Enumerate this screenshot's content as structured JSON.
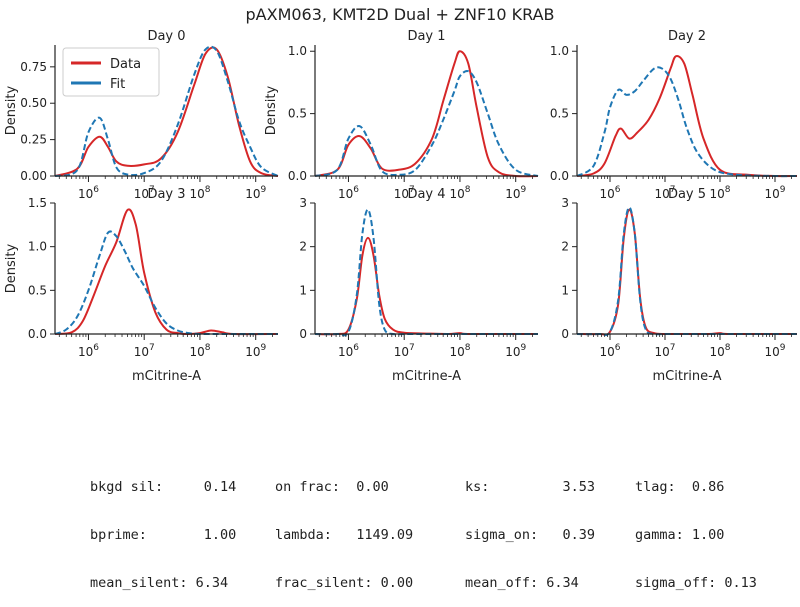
{
  "figure": {
    "title": "pAXM063, KMT2D Dual + ZNF10 KRAB"
  },
  "colors": {
    "data": "#d62728",
    "fit": "#1f77b4",
    "axis": "#222222"
  },
  "legend": {
    "placement": "top-left (first panel)",
    "items": [
      {
        "label": "Data",
        "color": "#d62728",
        "style": "solid"
      },
      {
        "label": "Fit",
        "color": "#1f77b4",
        "style": "solid"
      }
    ]
  },
  "chart_data": [
    {
      "type": "line",
      "title": "Day 0",
      "xlabel": "",
      "ylabel": "Density",
      "xscale": "log",
      "xlim_log10": [
        5.4,
        9.4
      ],
      "ylim": [
        0,
        0.9
      ],
      "yticks": [
        0.0,
        0.25,
        0.5,
        0.75
      ],
      "ytick_labels": [
        "0.00",
        "0.25",
        "0.50",
        "0.75"
      ],
      "xticks_log10": [
        6,
        7,
        8,
        9
      ],
      "xtick_labels": [
        "10^6",
        "10^7",
        "10^8",
        "10^9"
      ],
      "series": [
        {
          "name": "Data",
          "style": "solid",
          "color": "#d62728",
          "x_log10": [
            5.4,
            5.8,
            6.0,
            6.2,
            6.35,
            6.5,
            6.7,
            7.0,
            7.3,
            7.6,
            7.9,
            8.1,
            8.3,
            8.5,
            8.7,
            8.9,
            9.1,
            9.4
          ],
          "y": [
            0.0,
            0.05,
            0.2,
            0.27,
            0.2,
            0.1,
            0.07,
            0.08,
            0.12,
            0.3,
            0.63,
            0.84,
            0.87,
            0.68,
            0.35,
            0.1,
            0.02,
            0.0
          ]
        },
        {
          "name": "Fit",
          "style": "dashed",
          "color": "#1f77b4",
          "x_log10": [
            5.4,
            5.8,
            6.0,
            6.2,
            6.35,
            6.5,
            6.7,
            7.0,
            7.3,
            7.6,
            7.9,
            8.1,
            8.3,
            8.5,
            8.7,
            8.9,
            9.1,
            9.4
          ],
          "y": [
            0.0,
            0.04,
            0.3,
            0.4,
            0.25,
            0.06,
            0.01,
            0.02,
            0.1,
            0.35,
            0.7,
            0.87,
            0.86,
            0.65,
            0.38,
            0.2,
            0.06,
            0.0
          ]
        }
      ]
    },
    {
      "type": "line",
      "title": "Day 1",
      "xlabel": "",
      "ylabel": "Density",
      "xscale": "log",
      "xlim_log10": [
        5.4,
        9.4
      ],
      "ylim": [
        0,
        1.05
      ],
      "yticks": [
        0.0,
        0.5,
        1.0
      ],
      "ytick_labels": [
        "0.0",
        "0.5",
        "1.0"
      ],
      "xticks_log10": [
        6,
        7,
        8,
        9
      ],
      "xtick_labels": [
        "10^6",
        "10^7",
        "10^8",
        "10^9"
      ],
      "series": [
        {
          "name": "Data",
          "style": "solid",
          "color": "#d62728",
          "x_log10": [
            5.4,
            5.8,
            6.0,
            6.2,
            6.4,
            6.6,
            6.9,
            7.2,
            7.5,
            7.7,
            7.9,
            8.0,
            8.15,
            8.3,
            8.5,
            8.7,
            9.0,
            9.4
          ],
          "y": [
            0.0,
            0.05,
            0.25,
            0.32,
            0.22,
            0.06,
            0.05,
            0.1,
            0.3,
            0.6,
            0.9,
            1.0,
            0.9,
            0.55,
            0.15,
            0.03,
            0.0,
            0.0
          ]
        },
        {
          "name": "Fit",
          "style": "dashed",
          "color": "#1f77b4",
          "x_log10": [
            5.4,
            5.8,
            6.0,
            6.2,
            6.4,
            6.6,
            6.9,
            7.2,
            7.5,
            7.7,
            7.9,
            8.0,
            8.15,
            8.3,
            8.5,
            8.7,
            9.0,
            9.4
          ],
          "y": [
            0.0,
            0.05,
            0.3,
            0.4,
            0.25,
            0.04,
            0.01,
            0.05,
            0.25,
            0.45,
            0.68,
            0.8,
            0.84,
            0.75,
            0.5,
            0.25,
            0.05,
            0.0
          ]
        }
      ]
    },
    {
      "type": "line",
      "title": "Day 2",
      "xlabel": "",
      "ylabel": "",
      "xscale": "log",
      "xlim_log10": [
        5.4,
        9.4
      ],
      "ylim": [
        0,
        1.05
      ],
      "yticks": [
        0.0,
        0.5,
        1.0
      ],
      "ytick_labels": [
        "0.0",
        "0.5",
        "1.0"
      ],
      "xticks_log10": [
        6,
        7,
        8,
        9
      ],
      "xtick_labels": [
        "10^6",
        "10^7",
        "10^8",
        "10^9"
      ],
      "series": [
        {
          "name": "Data",
          "style": "solid",
          "color": "#d62728",
          "x_log10": [
            5.4,
            5.7,
            5.9,
            6.1,
            6.2,
            6.35,
            6.5,
            6.7,
            6.9,
            7.1,
            7.2,
            7.35,
            7.5,
            7.7,
            8.0,
            8.5,
            9.0,
            9.4
          ],
          "y": [
            0.0,
            0.02,
            0.1,
            0.32,
            0.38,
            0.3,
            0.35,
            0.45,
            0.62,
            0.86,
            0.96,
            0.9,
            0.65,
            0.3,
            0.05,
            0.01,
            0.0,
            0.0
          ]
        },
        {
          "name": "Fit",
          "style": "dashed",
          "color": "#1f77b4",
          "x_log10": [
            5.4,
            5.7,
            5.9,
            6.0,
            6.15,
            6.3,
            6.45,
            6.6,
            6.8,
            6.95,
            7.1,
            7.25,
            7.4,
            7.6,
            7.9,
            8.3,
            9.0,
            9.4
          ],
          "y": [
            0.0,
            0.08,
            0.35,
            0.55,
            0.69,
            0.65,
            0.68,
            0.76,
            0.86,
            0.86,
            0.78,
            0.6,
            0.38,
            0.18,
            0.05,
            0.01,
            0.0,
            0.0
          ]
        }
      ]
    },
    {
      "type": "line",
      "title": "Day 3",
      "xlabel": "mCitrine-A",
      "ylabel": "Density",
      "xscale": "log",
      "xlim_log10": [
        5.4,
        9.4
      ],
      "ylim": [
        0,
        1.5
      ],
      "yticks": [
        0.0,
        0.5,
        1.0,
        1.5
      ],
      "ytick_labels": [
        "0.0",
        "0.5",
        "1.0",
        "1.5"
      ],
      "xticks_log10": [
        6,
        7,
        8,
        9
      ],
      "xtick_labels": [
        "10^6",
        "10^7",
        "10^8",
        "10^9"
      ],
      "series": [
        {
          "name": "Data",
          "style": "solid",
          "color": "#d62728",
          "x_log10": [
            5.4,
            5.7,
            5.9,
            6.1,
            6.3,
            6.5,
            6.7,
            6.85,
            7.0,
            7.2,
            7.4,
            7.6,
            7.8,
            8.0,
            8.2,
            8.4,
            8.6,
            9.4
          ],
          "y": [
            0.0,
            0.02,
            0.15,
            0.45,
            0.78,
            1.05,
            1.42,
            1.25,
            0.7,
            0.25,
            0.05,
            0.01,
            0.0,
            0.01,
            0.04,
            0.02,
            0.0,
            0.0
          ]
        },
        {
          "name": "Fit",
          "style": "dashed",
          "color": "#1f77b4",
          "x_log10": [
            5.4,
            5.6,
            5.8,
            6.0,
            6.2,
            6.35,
            6.5,
            6.65,
            6.8,
            7.0,
            7.2,
            7.4,
            7.6,
            7.8,
            8.0,
            8.3,
            8.8,
            9.4
          ],
          "y": [
            0.0,
            0.05,
            0.2,
            0.5,
            0.9,
            1.16,
            1.12,
            0.95,
            0.75,
            0.55,
            0.3,
            0.12,
            0.04,
            0.01,
            0.0,
            0.0,
            0.0,
            0.0
          ]
        }
      ]
    },
    {
      "type": "line",
      "title": "Day 4",
      "xlabel": "mCitrine-A",
      "ylabel": "",
      "xscale": "log",
      "xlim_log10": [
        5.4,
        9.4
      ],
      "ylim": [
        0,
        3.0
      ],
      "yticks": [
        0,
        1,
        2,
        3
      ],
      "ytick_labels": [
        "0",
        "1",
        "2",
        "3"
      ],
      "xticks_log10": [
        6,
        7,
        8,
        9
      ],
      "xtick_labels": [
        "10^6",
        "10^7",
        "10^8",
        "10^9"
      ],
      "series": [
        {
          "name": "Data",
          "style": "solid",
          "color": "#d62728",
          "x_log10": [
            5.4,
            5.8,
            6.0,
            6.15,
            6.25,
            6.35,
            6.45,
            6.55,
            6.65,
            6.8,
            7.0,
            7.4,
            7.8,
            8.0,
            8.2,
            9.4
          ],
          "y": [
            0.0,
            0.0,
            0.1,
            0.8,
            1.8,
            2.2,
            1.8,
            0.9,
            0.35,
            0.1,
            0.03,
            0.01,
            0.0,
            0.02,
            0.0,
            0.0
          ]
        },
        {
          "name": "Fit",
          "style": "dashed",
          "color": "#1f77b4",
          "x_log10": [
            5.4,
            5.8,
            6.0,
            6.15,
            6.25,
            6.35,
            6.45,
            6.55,
            6.65,
            6.8,
            7.0,
            7.4,
            7.8,
            8.0,
            8.2,
            9.4
          ],
          "y": [
            0.0,
            0.0,
            0.05,
            0.9,
            2.3,
            2.85,
            2.2,
            0.7,
            0.1,
            0.0,
            0.0,
            0.0,
            0.0,
            0.0,
            0.0,
            0.0
          ]
        }
      ]
    },
    {
      "type": "line",
      "title": "Day 5",
      "xlabel": "mCitrine-A",
      "ylabel": "",
      "xscale": "log",
      "xlim_log10": [
        5.4,
        9.4
      ],
      "ylim": [
        0,
        3.0
      ],
      "yticks": [
        0,
        1,
        2,
        3
      ],
      "ytick_labels": [
        "0",
        "1",
        "2",
        "3"
      ],
      "xticks_log10": [
        6,
        7,
        8,
        9
      ],
      "xtick_labels": [
        "10^6",
        "10^7",
        "10^8",
        "10^9"
      ],
      "series": [
        {
          "name": "Data",
          "style": "solid",
          "color": "#d62728",
          "x_log10": [
            5.4,
            5.8,
            6.0,
            6.15,
            6.25,
            6.35,
            6.45,
            6.55,
            6.65,
            6.8,
            7.0,
            7.4,
            7.8,
            8.0,
            8.2,
            9.4
          ],
          "y": [
            0.0,
            0.0,
            0.05,
            0.7,
            2.2,
            2.85,
            2.3,
            0.8,
            0.15,
            0.02,
            0.0,
            0.0,
            0.0,
            0.02,
            0.0,
            0.0
          ]
        },
        {
          "name": "Fit",
          "style": "dashed",
          "color": "#1f77b4",
          "x_log10": [
            5.4,
            5.8,
            6.0,
            6.15,
            6.25,
            6.35,
            6.45,
            6.55,
            6.65,
            6.8,
            7.0,
            7.4,
            7.8,
            8.0,
            8.2,
            9.4
          ],
          "y": [
            0.0,
            0.0,
            0.05,
            0.8,
            2.3,
            2.9,
            2.3,
            0.75,
            0.1,
            0.0,
            0.0,
            0.0,
            0.0,
            0.0,
            0.0,
            0.0
          ]
        }
      ]
    }
  ],
  "stats": [
    [
      "bkgd sil:     0.14",
      "on frac:  0.00",
      "ks:         3.53",
      "tlag:  0.86"
    ],
    [
      "bprime:       1.00",
      "lambda:   1149.09",
      "sigma_on:   0.39",
      "gamma: 1.00"
    ],
    [
      "mean_silent: 6.34",
      "frac_silent: 0.00",
      "mean_off: 6.34",
      "sigma_off: 0.13"
    ]
  ]
}
